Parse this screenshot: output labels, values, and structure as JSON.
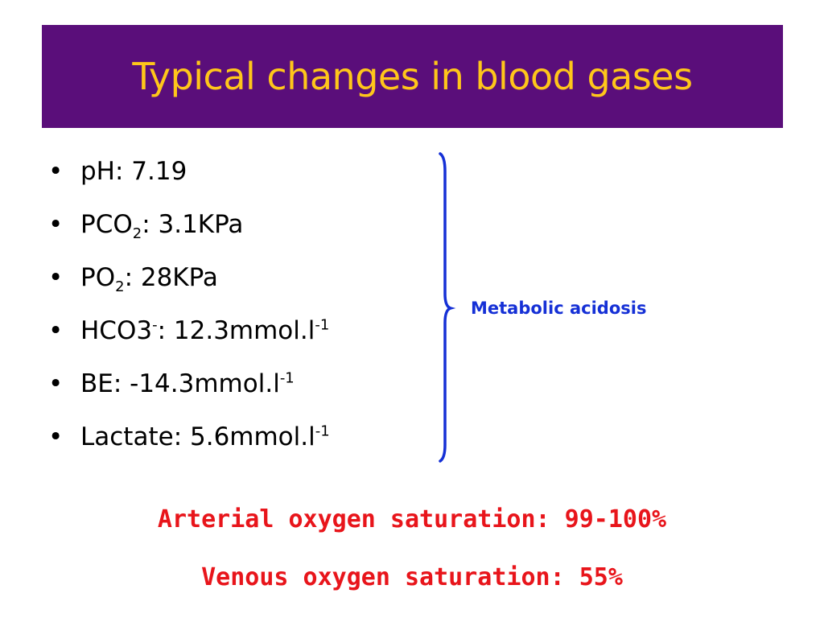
{
  "slide": {
    "title": "Typical changes in blood gases"
  },
  "bullets": [
    {
      "label": "pH: ",
      "value": "7.19"
    },
    {
      "prefix": "PCO",
      "sub": "2",
      "suffix": ": 3.1KPa"
    },
    {
      "prefix": "PO",
      "sub": "2",
      "suffix": ": 28KPa"
    },
    {
      "prefix": "HCO3",
      "sup1": "-",
      "middle": ": 12.3mmol.l",
      "sup2": "-1"
    },
    {
      "prefix": "BE: -14.3mmol.l",
      "sup": "-1"
    },
    {
      "prefix": "Lactate: 5.6mmol.l",
      "sup": "-1"
    }
  ],
  "bullet_symbol": "•",
  "bracket_label": "Metabolic acidosis",
  "saturation": {
    "arterial": "Arterial oxygen saturation: 99-100%",
    "venous": "Venous oxygen saturation: 55%"
  },
  "colors": {
    "title_bar": "#5a0e7a",
    "title_text": "#ffc61a",
    "bracket": "#1530d6",
    "saturation_text": "#e8151b"
  }
}
